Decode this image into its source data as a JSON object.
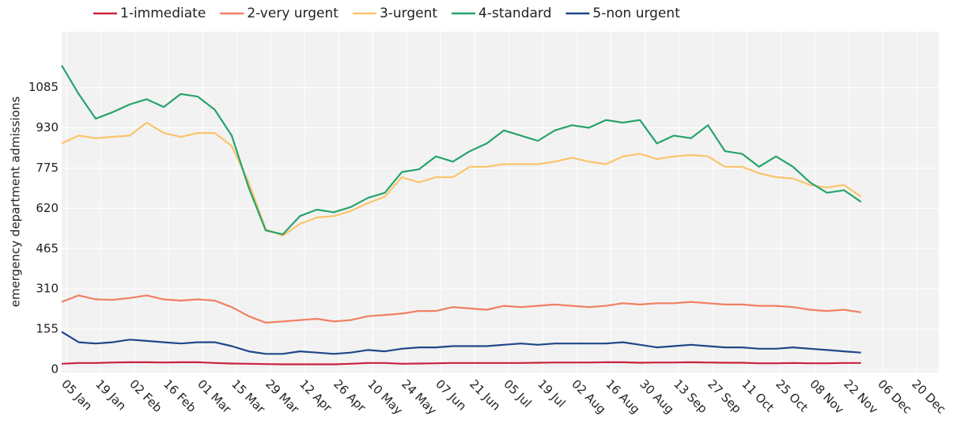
{
  "chart_data": {
    "type": "line",
    "y_label": "emergency department admissions",
    "x": [
      "03 Jan",
      "10 Jan",
      "17 Jan",
      "24 Jan",
      "31 Jan",
      "07 Feb",
      "14 Feb",
      "21 Feb",
      "28 Feb",
      "06 Mar",
      "13 Mar",
      "20 Mar",
      "27 Mar",
      "03 Apr",
      "10 Apr",
      "17 Apr",
      "24 Apr",
      "01 May",
      "08 May",
      "15 May",
      "22 May",
      "29 May",
      "05 Jun",
      "12 Jun",
      "19 Jun",
      "26 Jun",
      "03 Jul",
      "10 Jul",
      "17 Jul",
      "24 Jul",
      "31 Jul",
      "07 Aug",
      "14 Aug",
      "21 Aug",
      "28 Aug",
      "04 Sep",
      "11 Sep",
      "18 Sep",
      "25 Sep",
      "02 Oct",
      "09 Oct",
      "16 Oct",
      "23 Oct",
      "30 Oct",
      "06 Nov",
      "13 Nov",
      "20 Nov",
      "27 Nov"
    ],
    "series": [
      {
        "name": "1-immediate",
        "color": "#c9223f",
        "values": [
          22,
          25,
          25,
          27,
          28,
          28,
          27,
          28,
          28,
          25,
          23,
          22,
          21,
          20,
          20,
          20,
          20,
          22,
          25,
          25,
          22,
          23,
          24,
          25,
          25,
          25,
          25,
          25,
          26,
          27,
          27,
          27,
          28,
          28,
          26,
          27,
          27,
          28,
          27,
          26,
          26,
          24,
          24,
          25,
          24,
          24,
          25,
          25
        ]
      },
      {
        "name": "2-very urgent",
        "color": "#f07f62",
        "values": [
          260,
          285,
          270,
          268,
          275,
          285,
          270,
          265,
          270,
          265,
          240,
          205,
          180,
          185,
          190,
          195,
          185,
          190,
          205,
          210,
          215,
          225,
          225,
          240,
          235,
          230,
          245,
          240,
          245,
          250,
          245,
          240,
          245,
          255,
          250,
          255,
          255,
          260,
          255,
          250,
          250,
          245,
          245,
          240,
          230,
          225,
          230,
          220
        ]
      },
      {
        "name": "3-urgent",
        "color": "#fbc46b",
        "values": [
          870,
          900,
          890,
          895,
          900,
          950,
          910,
          895,
          910,
          910,
          860,
          720,
          540,
          515,
          560,
          585,
          590,
          610,
          640,
          665,
          740,
          720,
          740,
          740,
          780,
          780,
          790,
          790,
          790,
          800,
          815,
          800,
          790,
          820,
          830,
          810,
          820,
          825,
          820,
          780,
          780,
          755,
          740,
          735,
          710,
          700,
          710,
          665
        ]
      },
      {
        "name": "4-standard",
        "color": "#27a36b",
        "values": [
          1170,
          1060,
          965,
          990,
          1020,
          1040,
          1010,
          1060,
          1050,
          1000,
          900,
          700,
          535,
          520,
          590,
          615,
          605,
          625,
          660,
          680,
          760,
          770,
          820,
          800,
          840,
          870,
          920,
          900,
          880,
          920,
          940,
          930,
          960,
          950,
          960,
          870,
          900,
          890,
          940,
          840,
          830,
          780,
          820,
          780,
          720,
          680,
          690,
          645
        ]
      },
      {
        "name": "5-non urgent",
        "color": "#1f4788",
        "values": [
          145,
          105,
          100,
          105,
          115,
          110,
          105,
          100,
          105,
          105,
          90,
          70,
          60,
          60,
          70,
          65,
          60,
          65,
          75,
          70,
          80,
          85,
          85,
          90,
          90,
          90,
          95,
          100,
          95,
          100,
          100,
          100,
          100,
          105,
          95,
          85,
          90,
          95,
          90,
          85,
          85,
          80,
          80,
          85,
          80,
          75,
          70,
          65
        ]
      }
    ],
    "xlim": [
      "03 Jan",
      "29 Dec"
    ],
    "xticks": [
      "05 Jan",
      "19 Jan",
      "02 Feb",
      "16 Feb",
      "01 Mar",
      "15 Mar",
      "29 Mar",
      "12 Apr",
      "26 Apr",
      "10 May",
      "24 May",
      "07 Jun",
      "21 Jun",
      "05 Jul",
      "19 Jul",
      "02 Aug",
      "16 Aug",
      "30 Aug",
      "13 Sep",
      "27 Sep",
      "11 Oct",
      "25 Oct",
      "08 Nov",
      "22 Nov",
      "06 Dec",
      "20 Dec"
    ],
    "ylim": [
      -12,
      1300
    ],
    "yticks": [
      0,
      155,
      310,
      465,
      620,
      775,
      930,
      1085
    ],
    "grid": true,
    "legend": "top"
  }
}
